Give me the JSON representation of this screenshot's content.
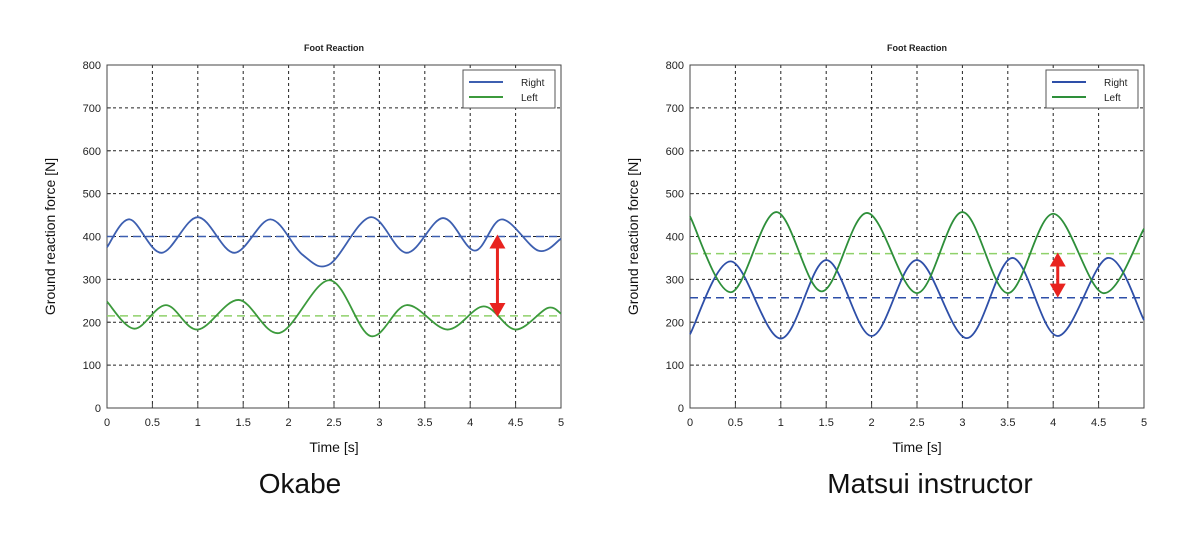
{
  "charts": [
    {
      "caption": "Okabe",
      "chart_data": {
        "type": "line",
        "title": "Foot Reaction",
        "xlabel": "Time [s]",
        "ylabel": "Ground reaction force [N]",
        "xlim": [
          0,
          5
        ],
        "ylim": [
          0,
          800
        ],
        "xticks": [
          "0",
          "0.5",
          "1",
          "1.5",
          "2",
          "2.5",
          "3",
          "3.5",
          "4",
          "4.5",
          "5"
        ],
        "yticks": [
          "0",
          "100",
          "200",
          "300",
          "400",
          "500",
          "600",
          "700",
          "800"
        ],
        "grid": true,
        "legend_position": "top-right",
        "series": [
          {
            "name": "Right",
            "color": "#3d5fb0",
            "x": [
              0,
              0.25,
              0.6,
              1.0,
              1.4,
              1.8,
              2.15,
              2.45,
              2.9,
              3.3,
              3.7,
              4.05,
              4.35,
              4.75,
              5.0
            ],
            "y": [
              375,
              440,
              362,
              445,
              362,
              440,
              358,
              335,
              445,
              362,
              443,
              367,
              440,
              367,
              395
            ]
          },
          {
            "name": "Left",
            "color": "#3c9a3c",
            "x": [
              0,
              0.3,
              0.65,
              1.0,
              1.45,
              1.9,
              2.45,
              2.9,
              3.3,
              3.75,
              4.15,
              4.5,
              4.85,
              5.0
            ],
            "y": [
              248,
              185,
              240,
              183,
              252,
              175,
              298,
              168,
              240,
              183,
              237,
              183,
              233,
              220
            ]
          }
        ],
        "reference_lines": [
          {
            "y": 400,
            "color": "#3d5fb0"
          },
          {
            "y": 215,
            "color": "#8fd16a"
          }
        ],
        "annotation_arrow": {
          "x": 4.3,
          "y_from": 400,
          "y_to": 217,
          "color": "#e8231f"
        }
      }
    },
    {
      "caption": "Matsui  instructor",
      "chart_data": {
        "type": "line",
        "title": "Foot Reaction",
        "xlabel": "Time [s]",
        "ylabel": "Ground reaction force [N]",
        "xlim": [
          0,
          5
        ],
        "ylim": [
          0,
          800
        ],
        "xticks": [
          "0",
          "0.5",
          "1",
          "1.5",
          "2",
          "2.5",
          "3",
          "3.5",
          "4",
          "4.5",
          "5"
        ],
        "yticks": [
          "0",
          "100",
          "200",
          "300",
          "400",
          "500",
          "600",
          "700",
          "800"
        ],
        "grid": true,
        "legend_position": "top-right",
        "series": [
          {
            "name": "Right",
            "color": "#2e4fa8",
            "x": [
              0,
              0.45,
              1.0,
              1.5,
              2.0,
              2.5,
              3.05,
              3.55,
              4.05,
              4.6,
              5.0
            ],
            "y": [
              172,
              342,
              162,
              345,
              168,
              345,
              163,
              350,
              168,
              350,
              205
            ]
          },
          {
            "name": "Left",
            "color": "#2e8f3a",
            "x": [
              0,
              0.45,
              0.95,
              1.45,
              1.95,
              2.5,
              3.0,
              3.5,
              4.0,
              4.55,
              5.0
            ],
            "y": [
              447,
              270,
              457,
              272,
              455,
              268,
              457,
              268,
              453,
              268,
              418
            ]
          }
        ],
        "reference_lines": [
          {
            "y": 360,
            "color": "#8fd16a"
          },
          {
            "y": 257,
            "color": "#2e4fa8"
          }
        ],
        "annotation_arrow": {
          "x": 4.05,
          "y_from": 358,
          "y_to": 262,
          "color": "#e8231f"
        }
      }
    }
  ]
}
